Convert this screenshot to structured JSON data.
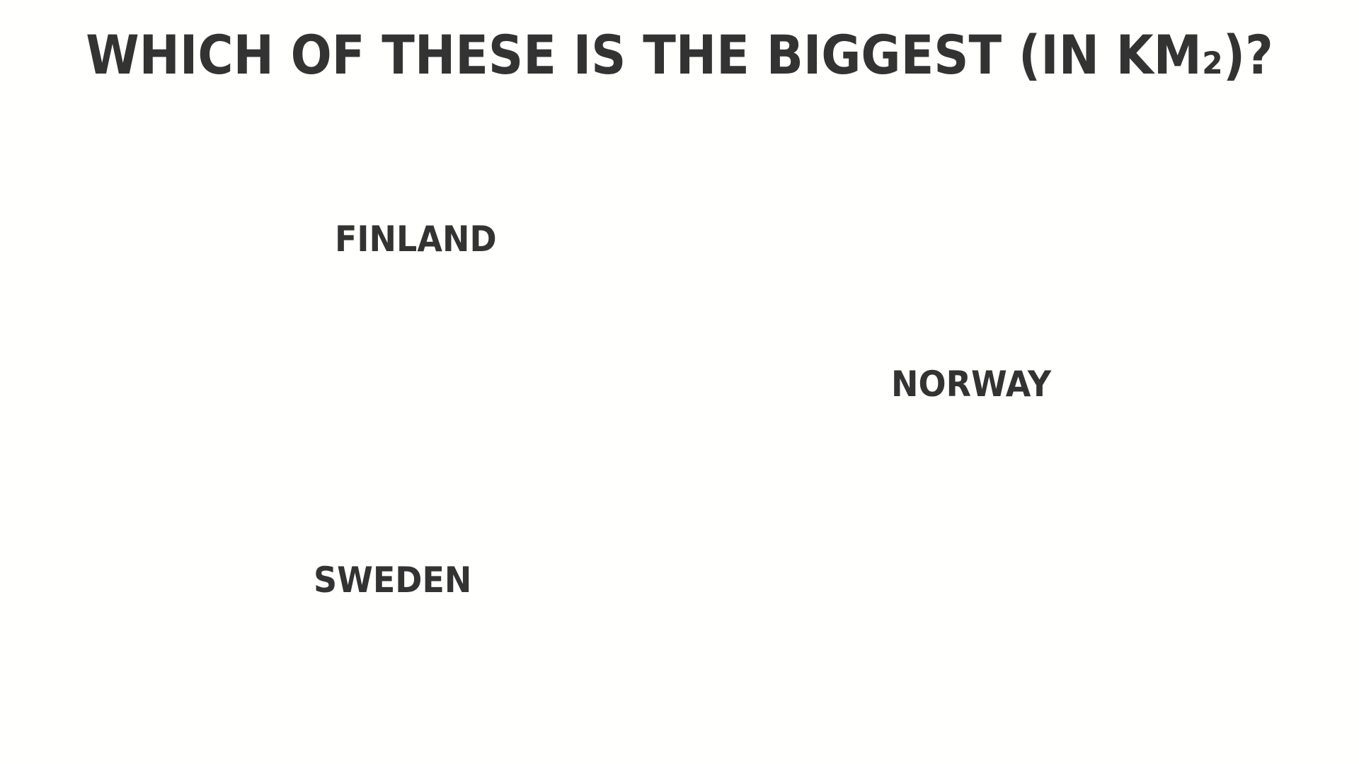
{
  "slide": {
    "question": "WHICH OF THESE IS THE BIGGEST (IN KM₂)?",
    "answers": [
      {
        "label": "FINLAND"
      },
      {
        "label": "NORWAY"
      },
      {
        "label": "SWEDEN"
      }
    ],
    "colors": {
      "background": "#fffffd",
      "text": "#333333"
    }
  }
}
